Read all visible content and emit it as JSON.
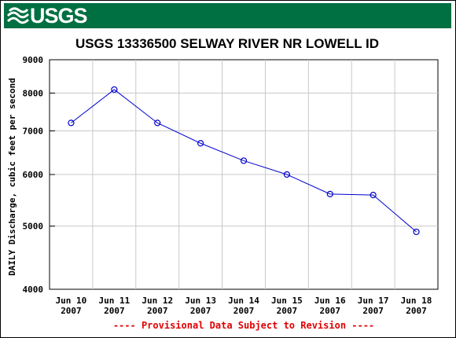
{
  "header": {
    "logo_text": "USGS"
  },
  "colors": {
    "banner": "#006f41",
    "series": "#0000cc",
    "grid": "#c8c8c8",
    "note": "#e00000"
  },
  "chart_data": {
    "type": "line",
    "title": "USGS 13336500 SELWAY RIVER NR LOWELL ID",
    "ylabel": "DAILY Discharge, cubic feet per second",
    "xlabel": "",
    "y_scale": "log",
    "ylim": [
      4000,
      9000
    ],
    "y_ticks": [
      "4000",
      "5000",
      "6000",
      "7000",
      "8000",
      "9000"
    ],
    "y_tick_values": [
      4000,
      5000,
      6000,
      7000,
      8000,
      9000
    ],
    "categories": [
      [
        "Jun 10",
        "2007"
      ],
      [
        "Jun 11",
        "2007"
      ],
      [
        "Jun 12",
        "2007"
      ],
      [
        "Jun 13",
        "2007"
      ],
      [
        "Jun 14",
        "2007"
      ],
      [
        "Jun 15",
        "2007"
      ],
      [
        "Jun 16",
        "2007"
      ],
      [
        "Jun 17",
        "2007"
      ],
      [
        "Jun 18",
        "2007"
      ]
    ],
    "series": [
      {
        "values": [
          7200,
          8100,
          7200,
          6700,
          6300,
          6000,
          5600,
          5580,
          4900
        ]
      }
    ],
    "grid": true,
    "marker": "circle",
    "annotation": "---- Provisional Data Subject to Revision ----"
  }
}
